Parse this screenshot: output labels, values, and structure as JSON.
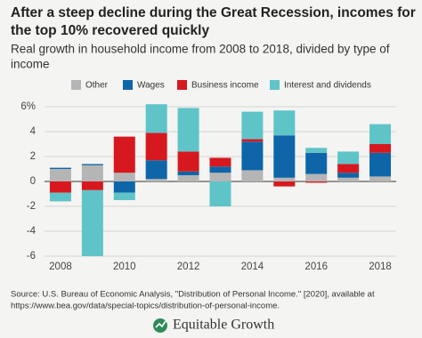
{
  "chart_data": {
    "type": "stacked-bar",
    "title": [
      "After a steep decline during the Great Recession, incomes for",
      "the top 10% recovered quickly"
    ],
    "subtitle": [
      "Real growth in household income from 2008 to 2018, divided by type of",
      "income"
    ],
    "categories": [
      "2008",
      null,
      "2010",
      null,
      "2012",
      null,
      "2014",
      null,
      "2016",
      null,
      "2018"
    ],
    "series": [
      {
        "name": "Other",
        "color": "#b5b5b5",
        "values": [
          1.0,
          1.3,
          0.7,
          0.2,
          0.5,
          0.7,
          0.9,
          0.3,
          0.6,
          0.3,
          0.4
        ]
      },
      {
        "name": "Wages",
        "color": "#0e66a8",
        "values": [
          0.1,
          0.1,
          -0.9,
          1.5,
          0.3,
          0.5,
          2.3,
          3.4,
          1.7,
          0.4,
          1.9
        ]
      },
      {
        "name": "Business income",
        "color": "#d7191f",
        "values": [
          -0.9,
          -0.7,
          2.9,
          2.2,
          1.6,
          0.7,
          0.2,
          -0.4,
          -0.1,
          0.7,
          0.7
        ]
      },
      {
        "name": "Interest and dividends",
        "color": "#5fc4c7",
        "values": [
          -0.7,
          -5.3,
          -0.6,
          2.3,
          3.5,
          -2.0,
          2.2,
          2.0,
          0.4,
          1.0,
          1.6
        ]
      }
    ],
    "ylim": [
      -6,
      6
    ],
    "yticks": [
      -6,
      -4,
      -2,
      0,
      2,
      4,
      {
        "value": 6,
        "label": "6%"
      }
    ],
    "grid": true
  },
  "source": [
    "Source: U.S. Bureau of Economic Analysis, \"Distribution of Personal Income.\" [2020], available at",
    "https://www.bea.gov/data/special-topics/distribution-of-personal-income."
  ],
  "brand": "Equitable Growth"
}
